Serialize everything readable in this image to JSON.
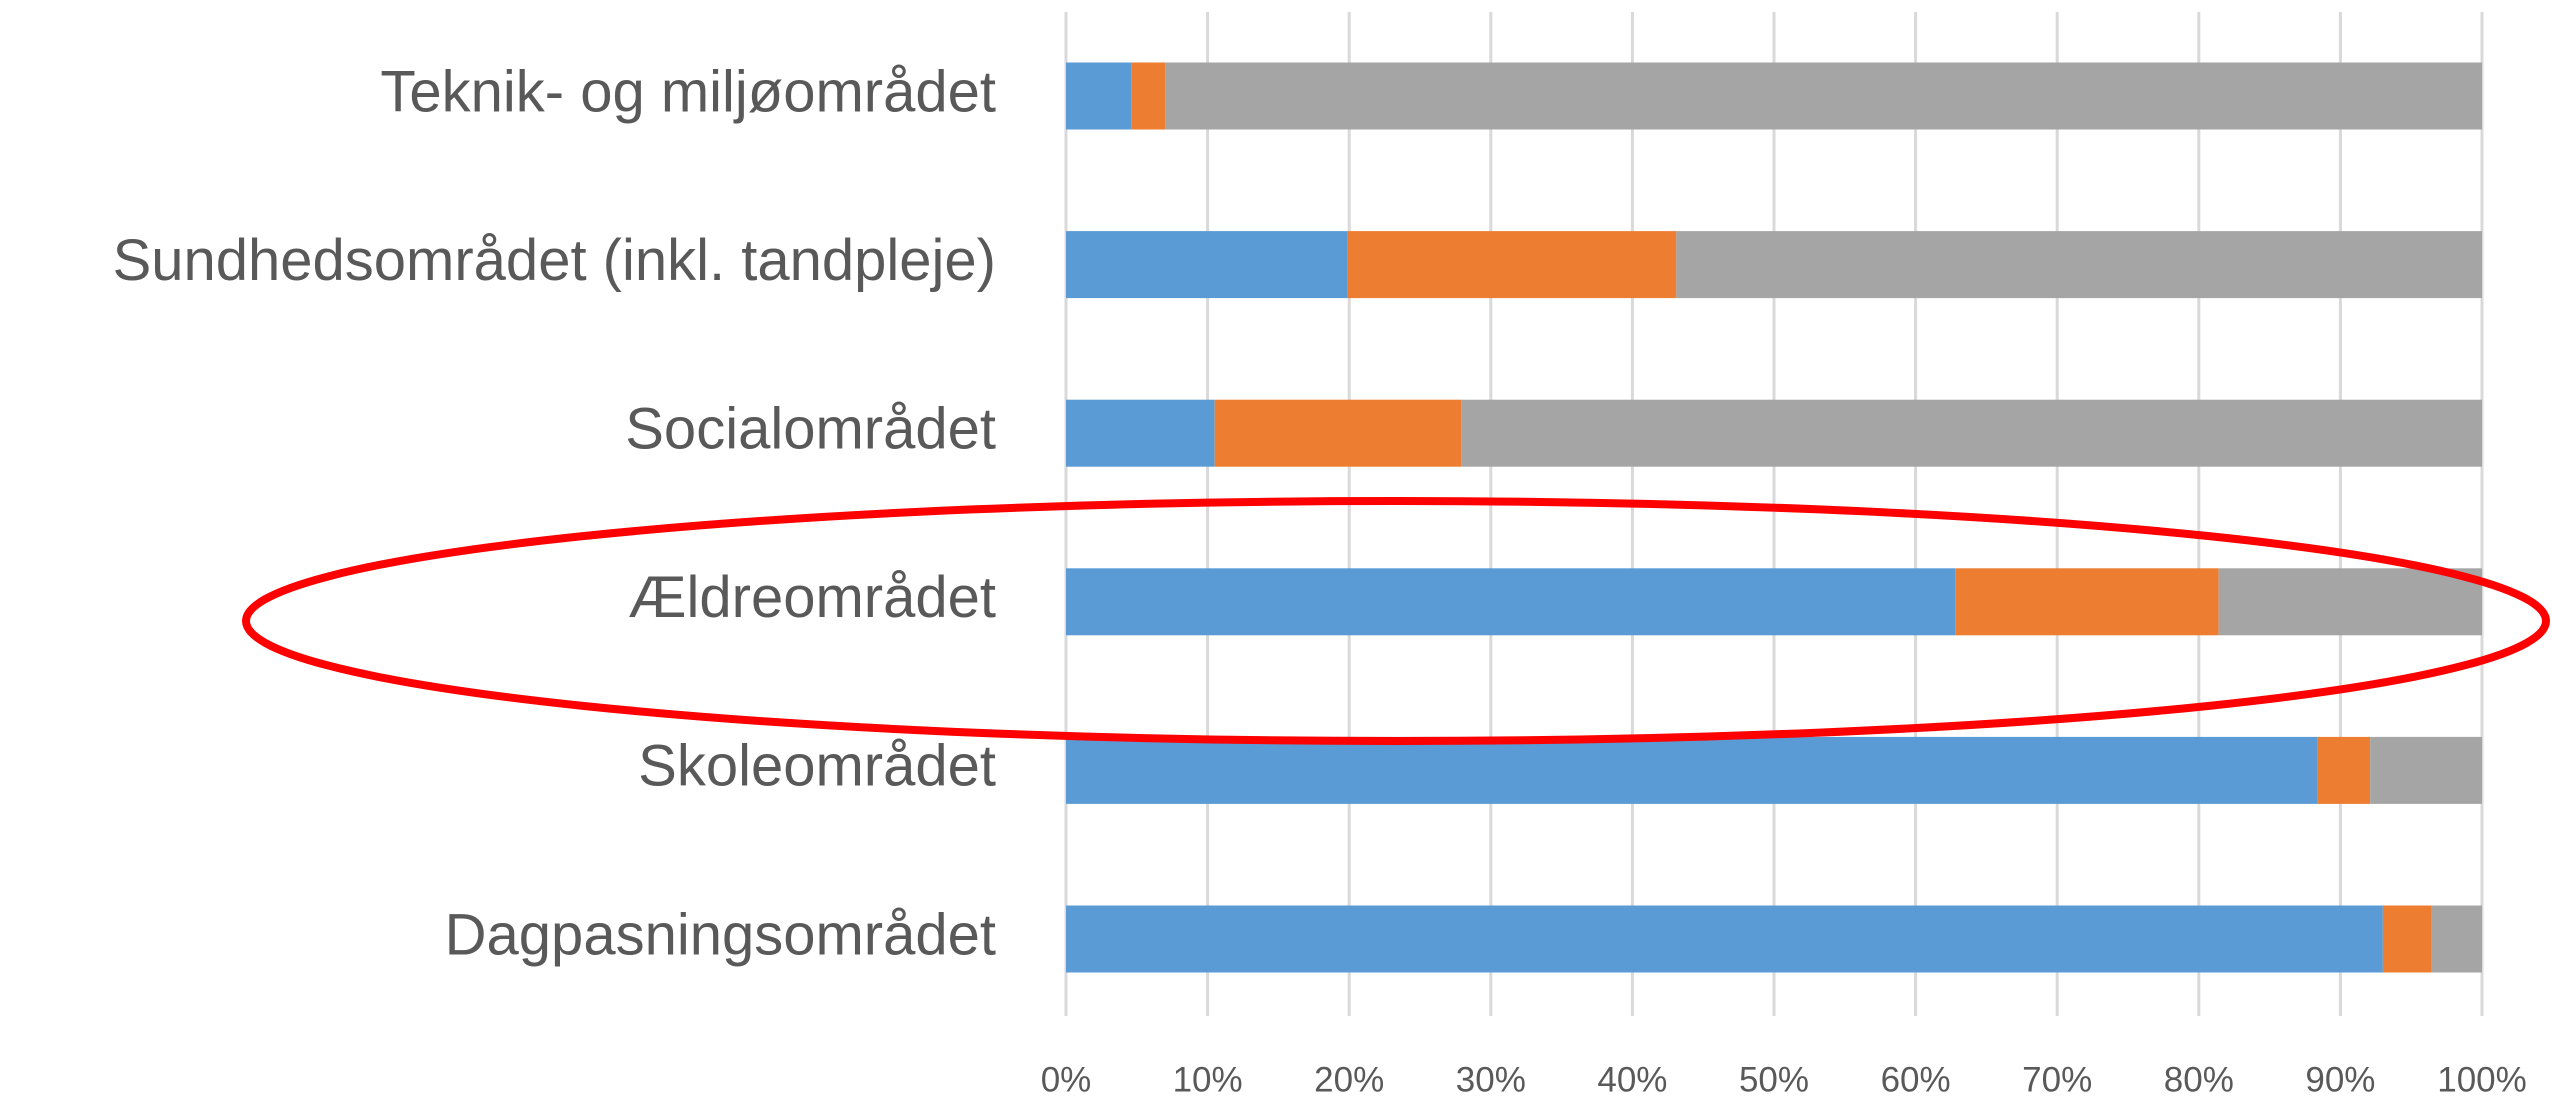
{
  "chart_data": {
    "type": "stacked_barh",
    "categories": [
      "Teknik- og miljøområdet",
      "Sundhedsområdet (inkl. tandpleje)",
      "Socialområdet",
      "Ældreområdet",
      "Skoleområdet",
      "Dagpasningsområdet"
    ],
    "series": [
      {
        "color": "#5b9bd5",
        "values": [
          4.6,
          19.9,
          10.5,
          62.8,
          88.4,
          93.0
        ]
      },
      {
        "color": "#ed7d31",
        "values": [
          2.4,
          23.2,
          17.4,
          18.6,
          3.7,
          3.4
        ]
      },
      {
        "color": "#a5a5a5",
        "values": [
          93.0,
          56.9,
          72.1,
          18.6,
          7.9,
          3.6
        ]
      }
    ],
    "xlim": [
      0,
      100
    ],
    "xticks": [
      {
        "value": 0,
        "label": "0%"
      },
      {
        "value": 10,
        "label": "10%"
      },
      {
        "value": 20,
        "label": "20%"
      },
      {
        "value": 30,
        "label": "30%"
      },
      {
        "value": 40,
        "label": "40%"
      },
      {
        "value": 50,
        "label": "50%"
      },
      {
        "value": 60,
        "label": "60%"
      },
      {
        "value": 70,
        "label": "70%"
      },
      {
        "value": 80,
        "label": "80%"
      },
      {
        "value": 90,
        "label": "90%"
      },
      {
        "value": 100,
        "label": "100%"
      }
    ],
    "grid": true
  }
}
